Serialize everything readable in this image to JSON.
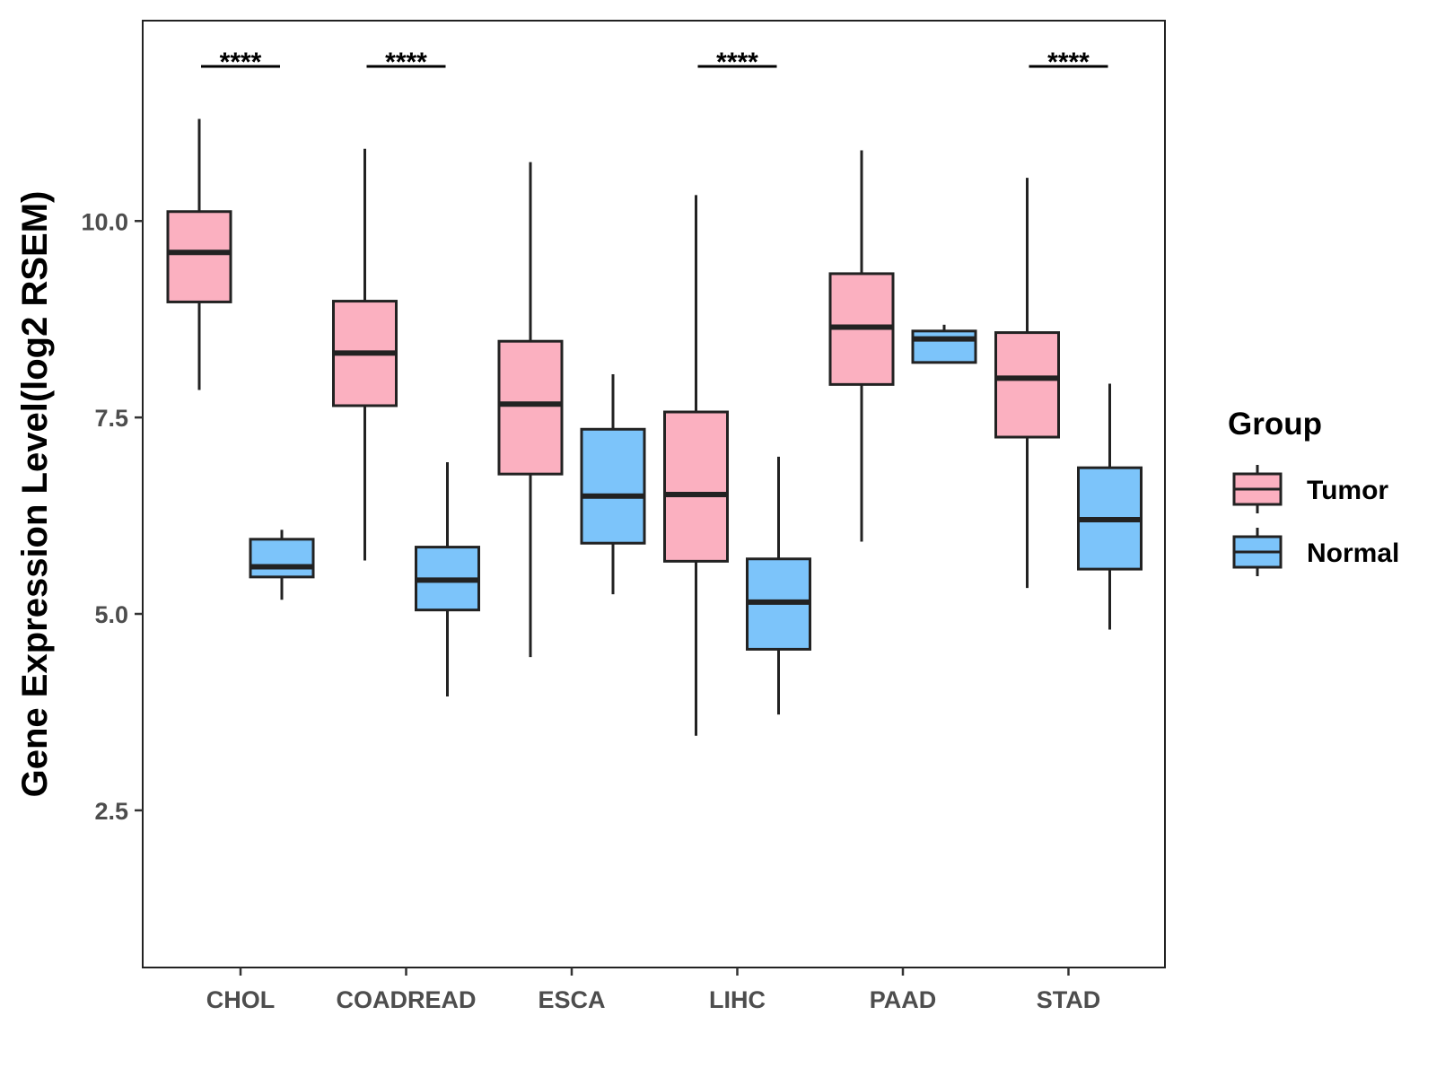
{
  "chart_data": {
    "type": "boxplot",
    "title": "",
    "xlabel": "",
    "ylabel": "Gene Expression Level(log2 RSEM)",
    "ylim": [
      0.5,
      12.55
    ],
    "yticks": [
      2.5,
      5.0,
      7.5,
      10.0
    ],
    "ytick_labels": [
      "2.5",
      "5.0",
      "7.5",
      "10.0"
    ],
    "categories": [
      "CHOL",
      "COADREAD",
      "ESCA",
      "LIHC",
      "PAAD",
      "STAD"
    ],
    "series": [
      {
        "name": "Tumor",
        "color": "#FBB0C0",
        "boxes": [
          {
            "min": 7.85,
            "q1": 8.97,
            "median": 9.6,
            "q3": 10.12,
            "max": 11.3
          },
          {
            "min": 5.68,
            "q1": 7.65,
            "median": 8.32,
            "q3": 8.98,
            "max": 10.92
          },
          {
            "min": 4.45,
            "q1": 6.78,
            "median": 7.67,
            "q3": 8.47,
            "max": 10.75
          },
          {
            "min": 3.45,
            "q1": 5.67,
            "median": 6.52,
            "q3": 7.57,
            "max": 10.33
          },
          {
            "min": 5.92,
            "q1": 7.92,
            "median": 8.65,
            "q3": 9.33,
            "max": 10.9
          },
          {
            "min": 5.33,
            "q1": 7.25,
            "median": 8.0,
            "q3": 8.58,
            "max": 10.55
          }
        ]
      },
      {
        "name": "Normal",
        "color": "#7CC4FA",
        "boxes": [
          {
            "min": 5.18,
            "q1": 5.47,
            "median": 5.6,
            "q3": 5.95,
            "max": 6.07
          },
          {
            "min": 3.95,
            "q1": 5.05,
            "median": 5.43,
            "q3": 5.85,
            "max": 6.93
          },
          {
            "min": 5.25,
            "q1": 5.9,
            "median": 6.5,
            "q3": 7.35,
            "max": 8.05
          },
          {
            "min": 3.72,
            "q1": 4.55,
            "median": 5.15,
            "q3": 5.7,
            "max": 7.0
          },
          {
            "min": 8.2,
            "q1": 8.2,
            "median": 8.5,
            "q3": 8.6,
            "max": 8.68
          },
          {
            "min": 4.8,
            "q1": 5.57,
            "median": 6.2,
            "q3": 6.86,
            "max": 7.93
          }
        ]
      }
    ],
    "significance": [
      {
        "category": "CHOL",
        "label": "****"
      },
      {
        "category": "COADREAD",
        "label": "****"
      },
      {
        "category": "LIHC",
        "label": "****"
      },
      {
        "category": "STAD",
        "label": "****"
      }
    ],
    "legend": {
      "title": "Group",
      "entries": [
        "Tumor",
        "Normal"
      ],
      "position": "right"
    },
    "grid": false
  }
}
